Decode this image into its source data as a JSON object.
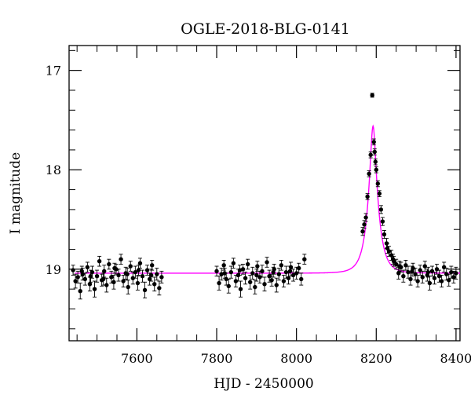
{
  "chart_data": {
    "type": "scatter",
    "title": "OGLE-2018-BLG-0141",
    "xlabel": "HJD - 2450000",
    "ylabel": "I magnitude",
    "xlim": [
      7430,
      8410
    ],
    "ylim": [
      19.72,
      16.75
    ],
    "y_inverted": true,
    "grid": false,
    "x_ticks": [
      7600,
      7800,
      8000,
      8200,
      8400
    ],
    "x_tick_labels": [
      "7600",
      "7800",
      "8000",
      "8200",
      "8400"
    ],
    "y_ticks": [
      17,
      18,
      19
    ],
    "y_tick_labels": [
      "17",
      "18",
      "19"
    ],
    "colors": {
      "data": "#000000",
      "model": "#ff00ff",
      "axis": "#000000"
    },
    "series": [
      {
        "type": "scatter",
        "with_error_bars": true,
        "points": [
          [
            7440,
            19.01,
            0.05
          ],
          [
            7446,
            19.12,
            0.07
          ],
          [
            7452,
            19.08,
            0.06
          ],
          [
            7458,
            19.22,
            0.08
          ],
          [
            7464,
            19.05,
            0.06
          ],
          [
            7470,
            19.1,
            0.06
          ],
          [
            7476,
            18.98,
            0.05
          ],
          [
            7482,
            19.15,
            0.07
          ],
          [
            7488,
            19.03,
            0.06
          ],
          [
            7494,
            19.2,
            0.08
          ],
          [
            7500,
            19.07,
            0.06
          ],
          [
            7506,
            18.92,
            0.05
          ],
          [
            7512,
            19.11,
            0.06
          ],
          [
            7518,
            19.02,
            0.06
          ],
          [
            7524,
            19.16,
            0.07
          ],
          [
            7530,
            18.95,
            0.05
          ],
          [
            7536,
            19.08,
            0.06
          ],
          [
            7542,
            19.13,
            0.07
          ],
          [
            7548,
            19.0,
            0.05
          ],
          [
            7554,
            19.06,
            0.06
          ],
          [
            7560,
            18.9,
            0.05
          ],
          [
            7566,
            19.12,
            0.06
          ],
          [
            7572,
            19.04,
            0.06
          ],
          [
            7578,
            19.18,
            0.07
          ],
          [
            7584,
            18.97,
            0.05
          ],
          [
            7590,
            19.09,
            0.06
          ],
          [
            7596,
            19.03,
            0.06
          ],
          [
            7602,
            19.14,
            0.07
          ],
          [
            7608,
            18.94,
            0.05
          ],
          [
            7614,
            19.07,
            0.06
          ],
          [
            7620,
            19.21,
            0.08
          ],
          [
            7626,
            19.01,
            0.05
          ],
          [
            7632,
            19.1,
            0.06
          ],
          [
            7638,
            18.96,
            0.05
          ],
          [
            7644,
            19.15,
            0.07
          ],
          [
            7650,
            19.05,
            0.06
          ],
          [
            7656,
            19.19,
            0.07
          ],
          [
            7662,
            19.08,
            0.06
          ],
          [
            7462,
            19.02,
            0.05
          ],
          [
            7484,
            19.07,
            0.06
          ],
          [
            7516,
            19.1,
            0.06
          ],
          [
            7544,
            18.99,
            0.05
          ],
          [
            7576,
            19.05,
            0.06
          ],
          [
            7604,
            19.01,
            0.05
          ],
          [
            7636,
            19.06,
            0.06
          ],
          [
            7800,
            19.02,
            0.05
          ],
          [
            7806,
            19.14,
            0.07
          ],
          [
            7812,
            19.05,
            0.06
          ],
          [
            7818,
            18.96,
            0.05
          ],
          [
            7824,
            19.1,
            0.06
          ],
          [
            7830,
            19.17,
            0.07
          ],
          [
            7836,
            19.03,
            0.06
          ],
          [
            7842,
            18.94,
            0.05
          ],
          [
            7848,
            19.12,
            0.06
          ],
          [
            7854,
            19.06,
            0.06
          ],
          [
            7860,
            19.2,
            0.08
          ],
          [
            7866,
            19.0,
            0.05
          ],
          [
            7872,
            19.09,
            0.06
          ],
          [
            7878,
            18.95,
            0.05
          ],
          [
            7884,
            19.13,
            0.07
          ],
          [
            7890,
            19.04,
            0.06
          ],
          [
            7896,
            19.18,
            0.07
          ],
          [
            7902,
            18.97,
            0.05
          ],
          [
            7908,
            19.08,
            0.06
          ],
          [
            7914,
            19.02,
            0.06
          ],
          [
            7920,
            19.15,
            0.07
          ],
          [
            7926,
            18.93,
            0.05
          ],
          [
            7932,
            19.07,
            0.06
          ],
          [
            7938,
            19.11,
            0.06
          ],
          [
            7944,
            19.0,
            0.05
          ],
          [
            7950,
            19.16,
            0.07
          ],
          [
            7956,
            19.05,
            0.06
          ],
          [
            7962,
            18.96,
            0.05
          ],
          [
            7968,
            19.12,
            0.06
          ],
          [
            7974,
            19.03,
            0.06
          ],
          [
            7980,
            19.09,
            0.06
          ],
          [
            7986,
            18.98,
            0.05
          ],
          [
            7992,
            19.06,
            0.06
          ],
          [
            8000,
            19.04,
            0.06
          ],
          [
            8006,
            18.99,
            0.05
          ],
          [
            8012,
            19.1,
            0.06
          ],
          [
            8020,
            18.9,
            0.05
          ],
          [
            7820,
            19.04,
            0.05
          ],
          [
            7858,
            19.01,
            0.05
          ],
          [
            7900,
            19.06,
            0.06
          ],
          [
            7942,
            19.03,
            0.05
          ],
          [
            7984,
            19.02,
            0.05
          ],
          [
            8166,
            18.62,
            0.04
          ],
          [
            8170,
            18.55,
            0.04
          ],
          [
            8174,
            18.48,
            0.04
          ],
          [
            8178,
            18.27,
            0.03
          ],
          [
            8182,
            18.04,
            0.03
          ],
          [
            8186,
            17.85,
            0.03
          ],
          [
            8190,
            17.25,
            0.02
          ],
          [
            8194,
            17.72,
            0.03
          ],
          [
            8196,
            17.82,
            0.03
          ],
          [
            8198,
            17.92,
            0.03
          ],
          [
            8200,
            18.0,
            0.03
          ],
          [
            8204,
            18.14,
            0.03
          ],
          [
            8208,
            18.24,
            0.03
          ],
          [
            8212,
            18.4,
            0.04
          ],
          [
            8216,
            18.52,
            0.04
          ],
          [
            8220,
            18.65,
            0.04
          ],
          [
            8226,
            18.74,
            0.05
          ],
          [
            8232,
            18.82,
            0.05
          ],
          [
            8238,
            18.86,
            0.05
          ],
          [
            8244,
            18.92,
            0.05
          ],
          [
            8250,
            18.95,
            0.05
          ],
          [
            8256,
            19.04,
            0.06
          ],
          [
            8262,
            18.98,
            0.05
          ],
          [
            8268,
            19.07,
            0.06
          ],
          [
            8274,
            18.96,
            0.05
          ],
          [
            8280,
            19.03,
            0.06
          ],
          [
            8286,
            19.1,
            0.06
          ],
          [
            8292,
            18.99,
            0.05
          ],
          [
            8298,
            19.05,
            0.06
          ],
          [
            8304,
            19.12,
            0.06
          ],
          [
            8310,
            19.01,
            0.05
          ],
          [
            8316,
            19.08,
            0.06
          ],
          [
            8322,
            18.97,
            0.05
          ],
          [
            8328,
            19.06,
            0.06
          ],
          [
            8334,
            19.14,
            0.07
          ],
          [
            8340,
            19.02,
            0.05
          ],
          [
            8346,
            19.09,
            0.06
          ],
          [
            8352,
            19.0,
            0.05
          ],
          [
            8358,
            19.07,
            0.06
          ],
          [
            8364,
            19.12,
            0.06
          ],
          [
            8370,
            18.98,
            0.05
          ],
          [
            8376,
            19.05,
            0.06
          ],
          [
            8382,
            19.11,
            0.06
          ],
          [
            8388,
            19.03,
            0.06
          ],
          [
            8394,
            19.08,
            0.06
          ],
          [
            8400,
            19.04,
            0.06
          ],
          [
            8228,
            18.79,
            0.05
          ],
          [
            8242,
            18.9,
            0.05
          ],
          [
            8258,
            18.97,
            0.05
          ],
          [
            8290,
            19.02,
            0.05
          ],
          [
            8330,
            19.03,
            0.05
          ]
        ]
      },
      {
        "type": "line",
        "model": "point-lens",
        "baseline": 19.04,
        "t0": 8192,
        "peak": 17.56,
        "tE": 25
      }
    ]
  }
}
